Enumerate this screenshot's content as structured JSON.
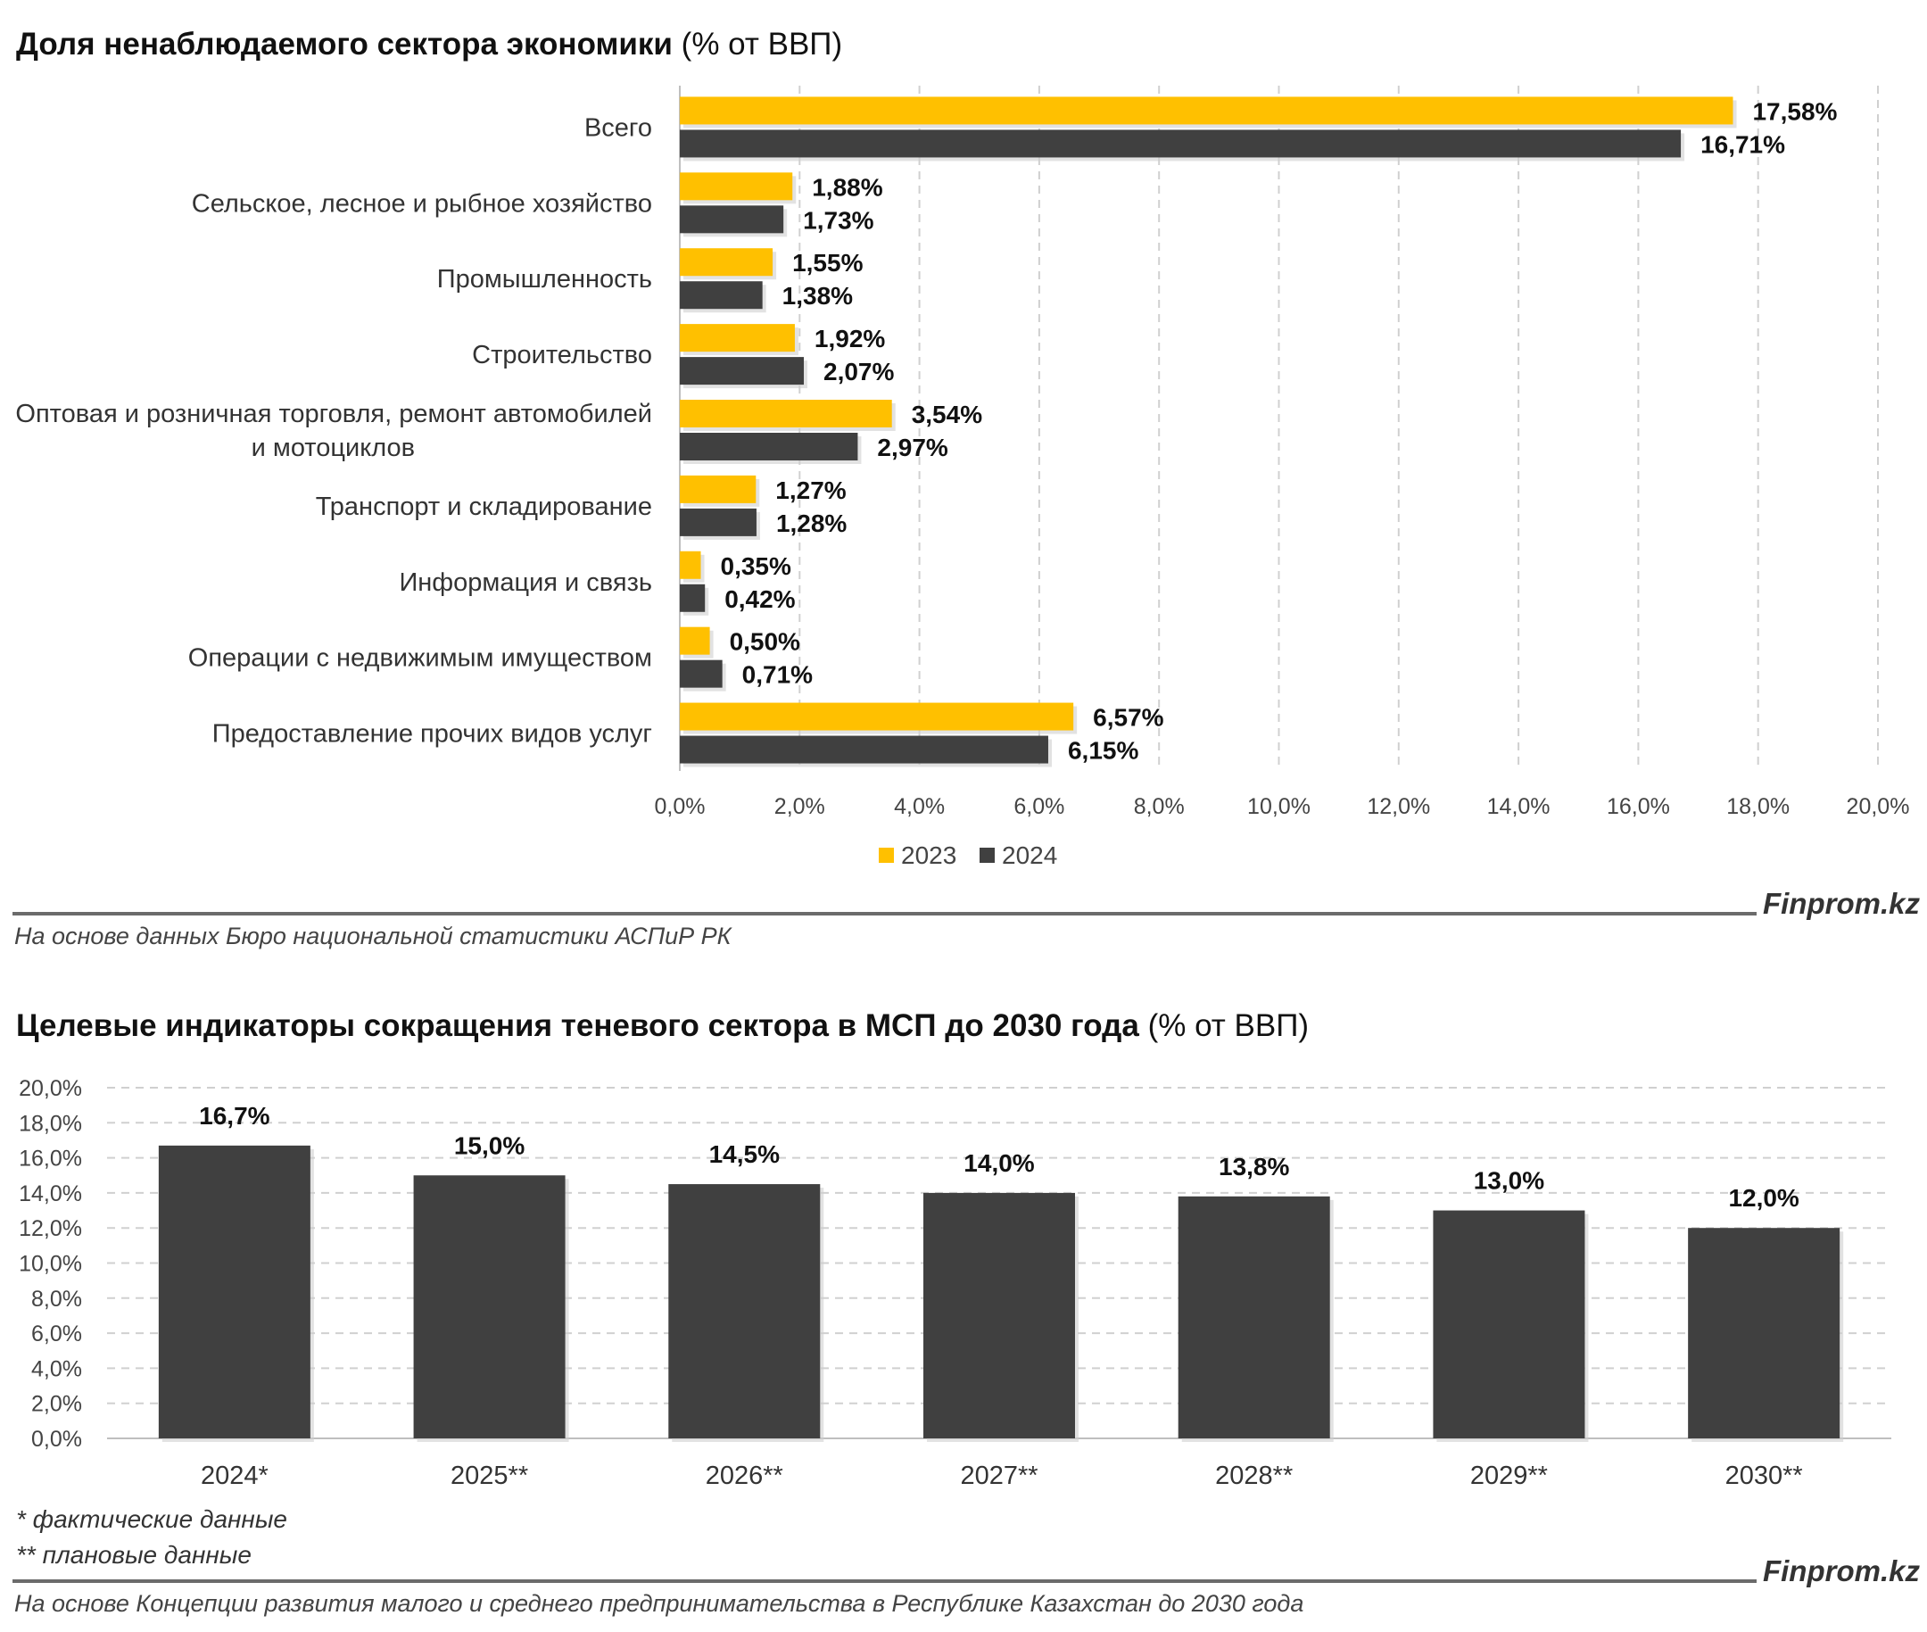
{
  "charts": [
    {
      "title_bold": "Доля ненаблюдаемого сектора экономики",
      "title_unit": "(% от ВВП)",
      "brand": "Finprom.kz",
      "source": "На основе данных Бюро национальной статистики АСПиР РК"
    },
    {
      "title_bold": "Целевые индикаторы сокращения теневого сектора в МСП до 2030 года",
      "title_unit": "(% от ВВП)",
      "brand": "Finprom.kz",
      "source": "На основе Концепции развития малого и среднего предпринимательства в Республике Казахстан до 2030 года",
      "notes": [
        "* фактические данные",
        "** плановые данные"
      ]
    }
  ],
  "colors": {
    "series_2023": "#FFC000",
    "series_2024": "#404040",
    "grid": "#d0d0d0"
  },
  "chart_data": [
    {
      "type": "bar",
      "orientation": "horizontal",
      "title": "Доля ненаблюдаемого сектора экономики (% от ВВП)",
      "categories": [
        [
          "Всего"
        ],
        [
          "Сельское, лесное и рыбное хозяйство"
        ],
        [
          "Промышленность"
        ],
        [
          "Строительство"
        ],
        [
          "Оптовая и розничная торговля, ремонт автомобилей",
          "и мотоциклов"
        ],
        [
          "Транспорт и складирование"
        ],
        [
          "Информация и связь"
        ],
        [
          "Операции с недвижимым имуществом"
        ],
        [
          "Предоставление прочих видов услуг"
        ]
      ],
      "series": [
        {
          "name": "2023",
          "values": [
            17.58,
            1.88,
            1.55,
            1.92,
            3.54,
            1.27,
            0.35,
            0.5,
            6.57
          ],
          "labels": [
            "17,58%",
            "1,88%",
            "1,55%",
            "1,92%",
            "3,54%",
            "1,27%",
            "0,35%",
            "0,50%",
            "6,57%"
          ]
        },
        {
          "name": "2024",
          "values": [
            16.71,
            1.73,
            1.38,
            2.07,
            2.97,
            1.28,
            0.42,
            0.71,
            6.15
          ],
          "labels": [
            "16,71%",
            "1,73%",
            "1,38%",
            "2,07%",
            "2,97%",
            "1,28%",
            "0,42%",
            "0,71%",
            "6,15%"
          ]
        }
      ],
      "xlim": [
        0,
        20
      ],
      "xticks": [
        "0,0%",
        "2,0%",
        "4,0%",
        "6,0%",
        "8,0%",
        "10,0%",
        "12,0%",
        "14,0%",
        "16,0%",
        "18,0%",
        "20,0%"
      ],
      "grid": "vertical dashed",
      "legend": "bottom"
    },
    {
      "type": "bar",
      "orientation": "vertical",
      "title": "Целевые индикаторы сокращения теневого сектора в МСП до 2030 года (% от ВВП)",
      "categories": [
        "2024*",
        "2025**",
        "2026**",
        "2027**",
        "2028**",
        "2029**",
        "2030**"
      ],
      "values": [
        16.7,
        15.0,
        14.5,
        14.0,
        13.8,
        13.0,
        12.0
      ],
      "labels": [
        "16,7%",
        "15,0%",
        "14,5%",
        "14,0%",
        "13,8%",
        "13,0%",
        "12,0%"
      ],
      "ylim": [
        0,
        20
      ],
      "yticks": [
        "0,0%",
        "2,0%",
        "4,0%",
        "6,0%",
        "8,0%",
        "10,0%",
        "12,0%",
        "14,0%",
        "16,0%",
        "18,0%",
        "20,0%"
      ],
      "grid": "horizontal dashed"
    }
  ]
}
